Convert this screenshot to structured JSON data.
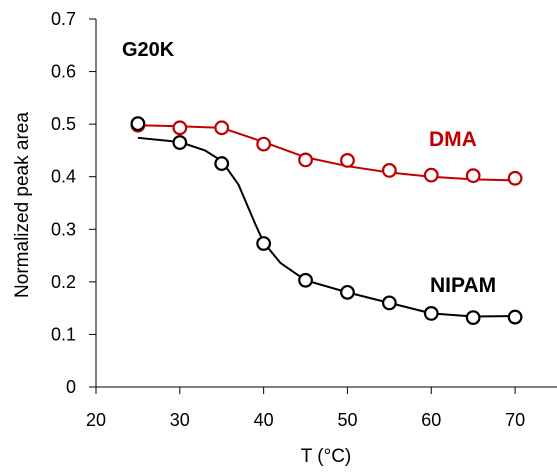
{
  "chart_data": {
    "type": "line",
    "title": "",
    "annotation": "G20K",
    "xlabel": "T (°C)",
    "ylabel": "Normalized peak area",
    "xlim": [
      20,
      75
    ],
    "ylim": [
      0,
      0.7
    ],
    "xticks": [
      20,
      30,
      40,
      50,
      60,
      70
    ],
    "yticks": [
      0,
      0.1,
      0.2,
      0.3,
      0.4,
      0.5,
      0.6,
      0.7
    ],
    "xtick_labels": [
      "20",
      "30",
      "40",
      "50",
      "60",
      "70"
    ],
    "ytick_labels": [
      "0",
      "0.1",
      "0.2",
      "0.3",
      "0.4",
      "0.5",
      "0.6",
      "0.7"
    ],
    "grid": false,
    "series": [
      {
        "name": "DMA",
        "color": "#C00000",
        "marker": "open-circle",
        "points": [
          {
            "x": 25,
            "y": 0.498
          },
          {
            "x": 30,
            "y": 0.493
          },
          {
            "x": 35,
            "y": 0.493
          },
          {
            "x": 40,
            "y": 0.462
          },
          {
            "x": 45,
            "y": 0.432
          },
          {
            "x": 50,
            "y": 0.431
          },
          {
            "x": 55,
            "y": 0.412
          },
          {
            "x": 60,
            "y": 0.403
          },
          {
            "x": 65,
            "y": 0.402
          },
          {
            "x": 70,
            "y": 0.397
          }
        ],
        "fit": [
          {
            "x": 25,
            "y": 0.498
          },
          {
            "x": 30,
            "y": 0.496
          },
          {
            "x": 35,
            "y": 0.493
          },
          {
            "x": 40,
            "y": 0.466
          },
          {
            "x": 45,
            "y": 0.437
          },
          {
            "x": 50,
            "y": 0.42
          },
          {
            "x": 55,
            "y": 0.408
          },
          {
            "x": 60,
            "y": 0.4
          },
          {
            "x": 65,
            "y": 0.395
          },
          {
            "x": 70,
            "y": 0.393
          }
        ]
      },
      {
        "name": "NIPAM",
        "color": "#000000",
        "marker": "open-circle",
        "points": [
          {
            "x": 25,
            "y": 0.501
          },
          {
            "x": 30,
            "y": 0.465
          },
          {
            "x": 35,
            "y": 0.425
          },
          {
            "x": 40,
            "y": 0.273
          },
          {
            "x": 45,
            "y": 0.203
          },
          {
            "x": 50,
            "y": 0.18
          },
          {
            "x": 55,
            "y": 0.16
          },
          {
            "x": 60,
            "y": 0.14
          },
          {
            "x": 65,
            "y": 0.132
          },
          {
            "x": 70,
            "y": 0.133
          }
        ],
        "fit": [
          {
            "x": 25,
            "y": 0.474
          },
          {
            "x": 30,
            "y": 0.466
          },
          {
            "x": 33,
            "y": 0.45
          },
          {
            "x": 35,
            "y": 0.43
          },
          {
            "x": 37,
            "y": 0.385
          },
          {
            "x": 39,
            "y": 0.31
          },
          {
            "x": 40,
            "y": 0.275
          },
          {
            "x": 42,
            "y": 0.236
          },
          {
            "x": 45,
            "y": 0.203
          },
          {
            "x": 50,
            "y": 0.18
          },
          {
            "x": 55,
            "y": 0.16
          },
          {
            "x": 60,
            "y": 0.14
          },
          {
            "x": 65,
            "y": 0.134
          },
          {
            "x": 70,
            "y": 0.135
          }
        ]
      }
    ]
  }
}
